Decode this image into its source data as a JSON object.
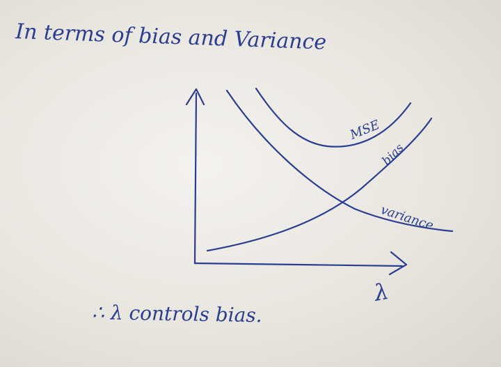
{
  "title": "In terms of bias and Variance",
  "footnote": "∴ λ controls bias.",
  "labels": {
    "mse": "MSE",
    "bias": "bias",
    "variance": "variance",
    "x_axis": "λ"
  },
  "colors": {
    "ink": "#2a3d8f",
    "paper": "#f1efea"
  }
}
